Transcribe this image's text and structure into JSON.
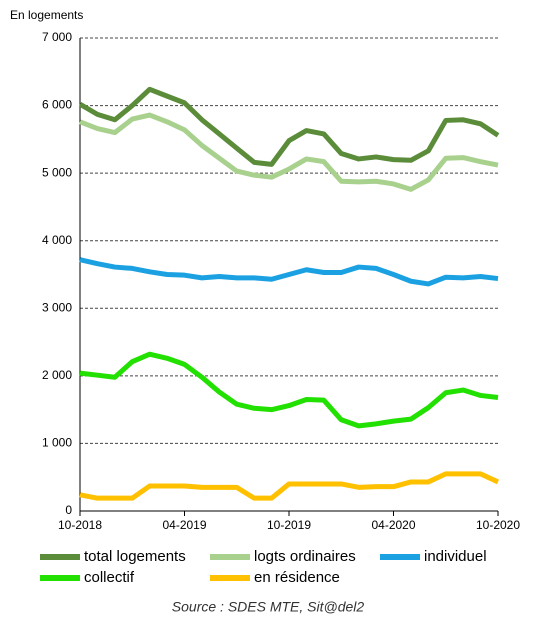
{
  "chart_data": {
    "type": "line",
    "y_label": "En logements",
    "source": "Source : SDES MTE, Sit@del2",
    "categories": [
      "10-2018",
      null,
      null,
      null,
      null,
      null,
      "04-2019",
      null,
      null,
      null,
      null,
      null,
      "10-2019",
      null,
      null,
      null,
      null,
      null,
      "04-2020",
      null,
      null,
      null,
      null,
      null,
      "10-2020"
    ],
    "ylim": [
      0,
      7000
    ],
    "yticks": [
      {
        "value": 0,
        "label": "0"
      },
      {
        "value": 1000,
        "label": "1 000"
      },
      {
        "value": 2000,
        "label": "2 000"
      },
      {
        "value": 3000,
        "label": "3 000"
      },
      {
        "value": 4000,
        "label": "4 000"
      },
      {
        "value": 5000,
        "label": "5 000"
      },
      {
        "value": 6000,
        "label": "6 000"
      },
      {
        "value": 7000,
        "label": "7 000"
      }
    ],
    "grid": true,
    "series": [
      {
        "name": "total logements",
        "color": "#5b8c3a",
        "values": [
          6020,
          5870,
          5790,
          6000,
          6240,
          6140,
          6040,
          5790,
          5580,
          5370,
          5160,
          5130,
          5480,
          5630,
          5580,
          5290,
          5210,
          5240,
          5200,
          5190,
          5330,
          5780,
          5790,
          5730,
          5560
        ]
      },
      {
        "name": "logts ordinaires",
        "color": "#a9d18e",
        "values": [
          5760,
          5660,
          5600,
          5800,
          5860,
          5760,
          5640,
          5410,
          5220,
          5030,
          4970,
          4940,
          5060,
          5210,
          5170,
          4880,
          4870,
          4880,
          4840,
          4760,
          4900,
          5220,
          5230,
          5170,
          5120
        ]
      },
      {
        "name": "individuel",
        "color": "#1ba1e2",
        "values": [
          3720,
          3660,
          3610,
          3590,
          3540,
          3500,
          3490,
          3450,
          3470,
          3450,
          3450,
          3430,
          3500,
          3570,
          3530,
          3530,
          3610,
          3590,
          3500,
          3400,
          3360,
          3460,
          3450,
          3470,
          3440
        ]
      },
      {
        "name": "collectif",
        "color": "#22e000",
        "values": [
          2040,
          2010,
          1980,
          2210,
          2320,
          2260,
          2170,
          1980,
          1760,
          1580,
          1520,
          1500,
          1560,
          1650,
          1640,
          1350,
          1260,
          1290,
          1330,
          1360,
          1530,
          1750,
          1790,
          1710,
          1680
        ]
      },
      {
        "name": "en résidence",
        "color": "#ffc000",
        "values": [
          240,
          190,
          190,
          190,
          370,
          370,
          370,
          350,
          350,
          350,
          190,
          190,
          400,
          400,
          400,
          400,
          350,
          360,
          360,
          430,
          430,
          550,
          550,
          550,
          430
        ]
      }
    ]
  }
}
